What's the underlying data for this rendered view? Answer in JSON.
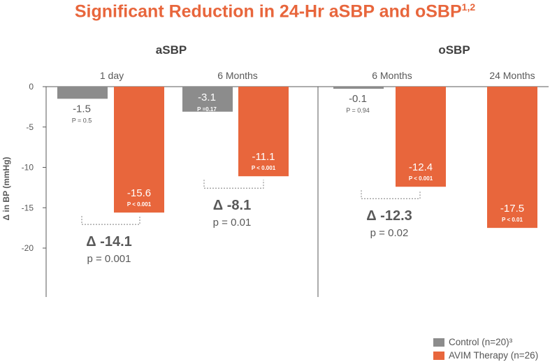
{
  "title": {
    "main": "Significant Reduction in 24-Hr aSBP and oSBP",
    "superscript": "1,2"
  },
  "colors": {
    "control": "#8c8c8c",
    "avim": "#e8663c",
    "title": "#e8663c",
    "axis": "#595959",
    "text": "#595959"
  },
  "chart_data": {
    "type": "bar",
    "ylabel": "Δ in BP (mmHg)",
    "ylim": [
      -26,
      0
    ],
    "yticks": [
      0,
      -5,
      -10,
      -15,
      -20
    ],
    "panels": [
      {
        "name": "aSBP",
        "groups": [
          {
            "label": "1 day",
            "control": {
              "value": -1.5,
              "label": "-1.5",
              "p": "P = 0.5"
            },
            "avim": {
              "value": -15.6,
              "label": "-15.6",
              "p": "P < 0.001"
            },
            "delta": {
              "label": "Δ -14.1",
              "p": "p = 0.001"
            }
          },
          {
            "label": "6 Months",
            "control": {
              "value": -3.1,
              "label": "-3.1",
              "p": "P =0.17"
            },
            "avim": {
              "value": -11.1,
              "label": "-11.1",
              "p": "P < 0.001"
            },
            "delta": {
              "label": "Δ -8.1",
              "p": "p = 0.01"
            }
          }
        ]
      },
      {
        "name": "oSBP",
        "groups": [
          {
            "label": "6 Months",
            "control": {
              "value": -0.1,
              "label": "-0.1",
              "p": "P = 0.94"
            },
            "avim": {
              "value": -12.4,
              "label": "-12.4",
              "p": "P < 0.001"
            },
            "delta": {
              "label": "Δ -12.3",
              "p": "p = 0.02"
            }
          },
          {
            "label": "24 Months",
            "control": null,
            "avim": {
              "value": -17.5,
              "label": "-17.5",
              "p": "P < 0.01"
            },
            "delta": null
          }
        ]
      }
    ],
    "legend": [
      {
        "key": "control",
        "label": "Control (n=20)³"
      },
      {
        "key": "avim",
        "label": "AVIM Therapy (n=26)"
      }
    ]
  }
}
